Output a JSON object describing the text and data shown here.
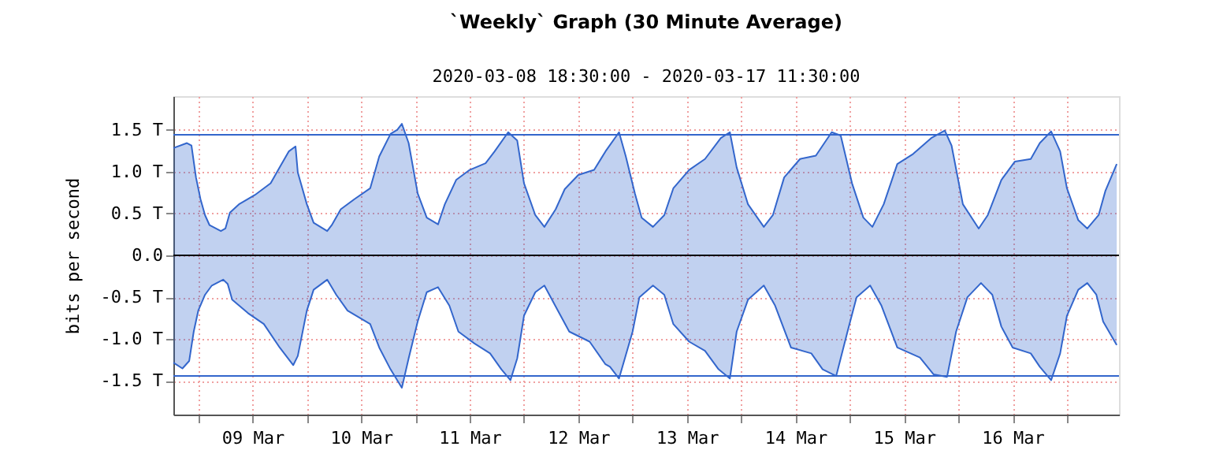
{
  "chart_data": {
    "type": "area",
    "title": "`Weekly` Graph (30 Minute Average)",
    "subtitle": "2020-03-08 18:30:00 - 2020-03-17 11:30:00",
    "ylabel": "bits per second",
    "xlim": [
      "2020-03-08T18:30",
      "2020-03-17T11:30"
    ],
    "ylim": [
      -1.9,
      1.9
    ],
    "xticks": [
      {
        "value": "2020-03-09T00:00",
        "label": null
      },
      {
        "value": "2020-03-09T12:00",
        "label": "09 Mar"
      },
      {
        "value": "2020-03-10T00:00",
        "label": null
      },
      {
        "value": "2020-03-10T12:00",
        "label": "10 Mar"
      },
      {
        "value": "2020-03-11T00:00",
        "label": null
      },
      {
        "value": "2020-03-11T12:00",
        "label": "11 Mar"
      },
      {
        "value": "2020-03-12T00:00",
        "label": null
      },
      {
        "value": "2020-03-12T12:00",
        "label": "12 Mar"
      },
      {
        "value": "2020-03-13T00:00",
        "label": null
      },
      {
        "value": "2020-03-13T12:00",
        "label": "13 Mar"
      },
      {
        "value": "2020-03-14T00:00",
        "label": null
      },
      {
        "value": "2020-03-14T12:00",
        "label": "14 Mar"
      },
      {
        "value": "2020-03-15T00:00",
        "label": null
      },
      {
        "value": "2020-03-15T12:00",
        "label": "15 Mar"
      },
      {
        "value": "2020-03-16T00:00",
        "label": null
      },
      {
        "value": "2020-03-16T12:00",
        "label": "16 Mar"
      },
      {
        "value": "2020-03-17T00:00",
        "label": null
      }
    ],
    "yticks": [
      {
        "value": -1.5,
        "label": "-1.5 T"
      },
      {
        "value": -1.0,
        "label": "-1.0 T"
      },
      {
        "value": -0.5,
        "label": "-0.5 T"
      },
      {
        "value": 0.0,
        "label": "0.0"
      },
      {
        "value": 0.5,
        "label": "0.5 T"
      },
      {
        "value": 1.0,
        "label": "1.0 T"
      },
      {
        "value": 1.5,
        "label": "1.5 T"
      }
    ],
    "grid": true,
    "ref_lines": [
      {
        "axis": "y",
        "value": 0,
        "color": "#000000"
      },
      {
        "axis": "y",
        "value": 1.44,
        "color": "#3366cc"
      },
      {
        "axis": "y",
        "value": -1.44,
        "color": "#3366cc"
      }
    ],
    "series": [
      {
        "color": "#3366cc",
        "x": [
          "2020-03-08T18:30",
          "2020-03-08T21:30",
          "2020-03-08T22:30",
          "2020-03-08T23:30",
          "2020-03-09T00:30",
          "2020-03-09T01:30",
          "2020-03-09T02:30",
          "2020-03-09T05:00",
          "2020-03-09T06:00",
          "2020-03-09T07:00",
          "2020-03-09T09:00",
          "2020-03-09T12:30",
          "2020-03-09T16:00",
          "2020-03-09T18:00",
          "2020-03-09T20:00",
          "2020-03-09T21:30",
          "2020-03-09T22:00",
          "2020-03-10T00:00",
          "2020-03-10T01:30",
          "2020-03-10T04:30",
          "2020-03-10T05:30",
          "2020-03-10T07:30",
          "2020-03-10T10:30",
          "2020-03-10T14:00",
          "2020-03-10T16:00",
          "2020-03-10T18:30",
          "2020-03-10T20:00",
          "2020-03-10T21:00",
          "2020-03-10T22:30",
          "2020-03-11T00:30",
          "2020-03-11T02:30",
          "2020-03-11T05:00",
          "2020-03-11T06:30",
          "2020-03-11T09:00",
          "2020-03-11T12:00",
          "2020-03-11T15:30",
          "2020-03-11T17:30",
          "2020-03-11T20:30",
          "2020-03-11T22:30",
          "2020-03-12T00:00",
          "2020-03-12T02:30",
          "2020-03-12T04:30",
          "2020-03-12T07:00",
          "2020-03-12T09:00",
          "2020-03-12T12:00",
          "2020-03-12T15:30",
          "2020-03-12T18:00",
          "2020-03-12T21:00",
          "2020-03-12T22:30",
          "2020-03-13T00:30",
          "2020-03-13T02:00",
          "2020-03-13T04:30",
          "2020-03-13T07:00",
          "2020-03-13T09:00",
          "2020-03-13T12:30",
          "2020-03-13T16:00",
          "2020-03-13T19:30",
          "2020-03-13T21:30",
          "2020-03-13T23:00",
          "2020-03-14T01:30",
          "2020-03-14T05:00",
          "2020-03-14T07:00",
          "2020-03-14T09:30",
          "2020-03-14T13:00",
          "2020-03-14T16:30",
          "2020-03-14T20:00",
          "2020-03-14T22:00",
          "2020-03-15T00:30",
          "2020-03-15T03:00",
          "2020-03-15T05:00",
          "2020-03-15T07:30",
          "2020-03-15T10:30",
          "2020-03-15T14:00",
          "2020-03-15T18:00",
          "2020-03-15T21:00",
          "2020-03-15T22:30",
          "2020-03-16T01:00",
          "2020-03-16T04:30",
          "2020-03-16T06:30",
          "2020-03-16T09:30",
          "2020-03-16T12:30",
          "2020-03-16T16:00",
          "2020-03-16T18:00",
          "2020-03-16T20:30",
          "2020-03-16T22:30",
          "2020-03-17T00:00",
          "2020-03-17T02:30",
          "2020-03-17T04:30",
          "2020-03-17T07:00",
          "2020-03-17T08:30",
          "2020-03-17T11:00"
        ],
        "values": [
          1.28,
          1.34,
          1.31,
          0.93,
          0.67,
          0.48,
          0.36,
          0.29,
          0.32,
          0.51,
          0.61,
          0.72,
          0.86,
          1.05,
          1.24,
          1.3,
          0.99,
          0.61,
          0.39,
          0.29,
          0.36,
          0.55,
          0.67,
          0.8,
          1.18,
          1.45,
          1.5,
          1.57,
          1.34,
          0.74,
          0.45,
          0.37,
          0.61,
          0.9,
          1.02,
          1.1,
          1.24,
          1.47,
          1.37,
          0.86,
          0.48,
          0.34,
          0.55,
          0.79,
          0.96,
          1.02,
          1.24,
          1.47,
          1.18,
          0.74,
          0.45,
          0.34,
          0.48,
          0.8,
          1.02,
          1.15,
          1.4,
          1.47,
          1.05,
          0.61,
          0.34,
          0.48,
          0.93,
          1.15,
          1.19,
          1.47,
          1.43,
          0.86,
          0.45,
          0.34,
          0.61,
          1.09,
          1.21,
          1.4,
          1.49,
          1.31,
          0.61,
          0.32,
          0.48,
          0.9,
          1.12,
          1.15,
          1.34,
          1.48,
          1.24,
          0.8,
          0.42,
          0.32,
          0.48,
          0.77,
          1.09
        ]
      },
      {
        "color": "#3366cc",
        "x": [
          "2020-03-08T18:30",
          "2020-03-08T20:30",
          "2020-03-08T22:00",
          "2020-03-08T23:00",
          "2020-03-09T00:00",
          "2020-03-09T01:30",
          "2020-03-09T03:00",
          "2020-03-09T05:30",
          "2020-03-09T06:30",
          "2020-03-09T07:30",
          "2020-03-09T11:00",
          "2020-03-09T14:30",
          "2020-03-09T18:00",
          "2020-03-09T21:00",
          "2020-03-09T22:00",
          "2020-03-10T00:00",
          "2020-03-10T01:30",
          "2020-03-10T04:30",
          "2020-03-10T06:30",
          "2020-03-10T09:00",
          "2020-03-10T14:00",
          "2020-03-10T16:00",
          "2020-03-10T18:30",
          "2020-03-10T21:00",
          "2020-03-10T22:30",
          "2020-03-11T00:30",
          "2020-03-11T02:30",
          "2020-03-11T05:00",
          "2020-03-11T07:30",
          "2020-03-11T09:30",
          "2020-03-11T13:00",
          "2020-03-11T16:30",
          "2020-03-11T19:00",
          "2020-03-11T21:00",
          "2020-03-11T22:30",
          "2020-03-12T00:00",
          "2020-03-12T02:30",
          "2020-03-12T04:30",
          "2020-03-12T07:30",
          "2020-03-12T10:00",
          "2020-03-12T14:30",
          "2020-03-12T18:00",
          "2020-03-12T19:00",
          "2020-03-12T21:00",
          "2020-03-13T00:00",
          "2020-03-13T01:30",
          "2020-03-13T04:30",
          "2020-03-13T07:00",
          "2020-03-13T09:00",
          "2020-03-13T12:30",
          "2020-03-13T16:00",
          "2020-03-13T19:00",
          "2020-03-13T21:30",
          "2020-03-13T23:00",
          "2020-03-14T01:30",
          "2020-03-14T05:00",
          "2020-03-14T07:30",
          "2020-03-14T11:00",
          "2020-03-14T15:30",
          "2020-03-14T18:00",
          "2020-03-14T21:00",
          "2020-03-14T23:30",
          "2020-03-15T01:30",
          "2020-03-15T04:30",
          "2020-03-15T07:00",
          "2020-03-15T10:30",
          "2020-03-15T15:30",
          "2020-03-15T18:30",
          "2020-03-15T21:30",
          "2020-03-15T23:30",
          "2020-03-16T02:00",
          "2020-03-16T05:00",
          "2020-03-16T07:30",
          "2020-03-16T09:30",
          "2020-03-16T12:00",
          "2020-03-16T16:00",
          "2020-03-16T18:00",
          "2020-03-16T20:30",
          "2020-03-16T22:30",
          "2020-03-17T00:00",
          "2020-03-17T02:30",
          "2020-03-17T04:30",
          "2020-03-17T06:30",
          "2020-03-17T08:00",
          "2020-03-17T11:00"
        ],
        "values": [
          -1.28,
          -1.35,
          -1.26,
          -0.91,
          -0.66,
          -0.47,
          -0.36,
          -0.29,
          -0.34,
          -0.53,
          -0.69,
          -0.82,
          -1.1,
          -1.31,
          -1.2,
          -0.66,
          -0.41,
          -0.29,
          -0.47,
          -0.66,
          -0.82,
          -1.1,
          -1.36,
          -1.58,
          -1.23,
          -0.79,
          -0.44,
          -0.38,
          -0.6,
          -0.91,
          -1.05,
          -1.17,
          -1.36,
          -1.49,
          -1.23,
          -0.72,
          -0.44,
          -0.36,
          -0.66,
          -0.91,
          -1.03,
          -1.3,
          -1.33,
          -1.47,
          -0.91,
          -0.5,
          -0.36,
          -0.47,
          -0.82,
          -1.03,
          -1.14,
          -1.36,
          -1.47,
          -0.91,
          -0.53,
          -0.36,
          -0.6,
          -1.1,
          -1.17,
          -1.36,
          -1.44,
          -0.91,
          -0.5,
          -0.36,
          -0.6,
          -1.1,
          -1.22,
          -1.42,
          -1.45,
          -0.91,
          -0.5,
          -0.33,
          -0.47,
          -0.85,
          -1.1,
          -1.17,
          -1.33,
          -1.49,
          -1.17,
          -0.72,
          -0.41,
          -0.33,
          -0.47,
          -0.79,
          -1.07
        ]
      }
    ]
  }
}
